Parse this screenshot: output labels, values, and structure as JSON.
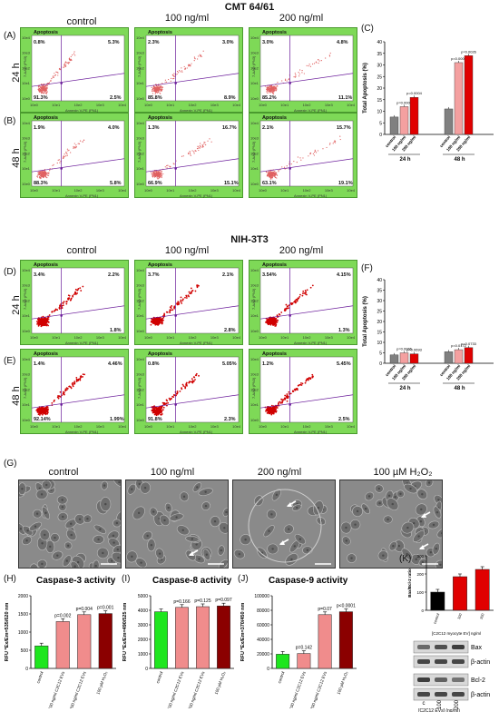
{
  "sectionA": {
    "header": "CMT 64/61",
    "columns": [
      "control",
      "100 ng/ml",
      "200 ng/ml"
    ],
    "rows": [
      "24 h",
      "48 h"
    ],
    "panel_labels": [
      "(A)",
      "(B)"
    ]
  },
  "sectionD": {
    "header": "NIH-3T3",
    "columns": [
      "control",
      "100 ng/ml",
      "200 ng/ml"
    ],
    "rows": [
      "24 h",
      "48 h"
    ],
    "panel_labels": [
      "(D)",
      "(E)"
    ]
  },
  "flow_common": {
    "gate": "Apoptosis",
    "ylabel": "7-AAD (PN3)",
    "xlabel": "Annexin V-PE (PN1)",
    "ticks": [
      "10e0",
      "10e1",
      "10e2",
      "10e3",
      "10e4"
    ]
  },
  "cmt_quadrants": [
    [
      {
        "ul": "0.8%",
        "ur": "5.3%",
        "ll": "91.3%",
        "lr": "2.5%"
      },
      {
        "ul": "2.3%",
        "ur": "3.0%",
        "ll": "85.8%",
        "lr": "8.9%"
      },
      {
        "ul": "3.0%",
        "ur": "4.8%",
        "ll": "85.2%",
        "lr": "11.1%"
      }
    ],
    [
      {
        "ul": "1.9%",
        "ur": "4.0%",
        "ll": "88.3%",
        "lr": "5.8%"
      },
      {
        "ul": "1.3%",
        "ur": "16.7%",
        "ll": "66.9%",
        "lr": "15.1%"
      },
      {
        "ul": "2.1%",
        "ur": "15.7%",
        "ll": "63.1%",
        "lr": "19.1%"
      }
    ]
  ],
  "nih_quadrants": [
    [
      {
        "ul": "3.4%",
        "ur": "2.2%",
        "ll": "",
        "lr": "1.8%"
      },
      {
        "ul": "3.7%",
        "ur": "2.1%",
        "ll": "",
        "lr": "2.8%"
      },
      {
        "ul": "3.54%",
        "ur": "4.15%",
        "ll": "",
        "lr": "1.3%"
      }
    ],
    [
      {
        "ul": "1.4%",
        "ur": "4.46%",
        "ll": "92.14%",
        "lr": "1.99%"
      },
      {
        "ul": "0.8%",
        "ur": "5.05%",
        "ll": "91.8%",
        "lr": "2.3%"
      },
      {
        "ul": "1.2%",
        "ur": "5.45%",
        "ll": "",
        "lr": "2.5%"
      }
    ]
  ],
  "colors": {
    "control": "#808080",
    "c100": "#f4a0a0",
    "c200": "#e00000",
    "green": "#1ee61e",
    "pink": "#f08c8c",
    "darkred": "#8b0000",
    "flowbg": "#7ed957"
  },
  "panelC": {
    "label": "(C)",
    "ylabel": "Total Apoptosis (%)"
  },
  "panelF": {
    "label": "(F)",
    "ylabel": "Total Apoptosis (%)"
  },
  "panelG": {
    "label": "(G)",
    "captions": [
      "control",
      "100 ng/ml",
      "200 ng/ml",
      "100 µM H₂O₂"
    ]
  },
  "panelH": {
    "label": "(H)",
    "title": "Caspase-3 activity",
    "ylabel": "RFU *Ex/Em=535/620 nm"
  },
  "panelI": {
    "label": "(I)",
    "title": "Caspase-8 activity",
    "ylabel": "RFU *Ex/Em=490/525 nm"
  },
  "panelJ": {
    "label": "(J)",
    "title": "Caspase-9 activity",
    "ylabel": "RFU *Ex/Em=370/450 nm"
  },
  "panelK": {
    "label": "(K)",
    "ylabel": "Bax/Bcl-2 ratio",
    "xcaption": "[C2C12 myocyte EV] ng/ml",
    "blots": [
      "Bax",
      "β-actin",
      "Bcl-2",
      "β-actin"
    ],
    "lanes": [
      "c",
      "100",
      "200"
    ],
    "caption": "[C2C12 EVs] (ng/ml)"
  },
  "chart_data": [
    {
      "type": "bar",
      "name": "C",
      "categories": [
        "control",
        "100 ng/ml",
        "200 ng/ml"
      ],
      "groups": [
        "24 h",
        "48 h"
      ],
      "series": [
        {
          "group": "24 h",
          "values": [
            7.5,
            12,
            16
          ],
          "pvals": [
            "",
            "p=0.0005",
            "p=0.0004"
          ]
        },
        {
          "group": "48 h",
          "values": [
            11,
            31,
            34
          ],
          "pvals": [
            "",
            "p=0.0009",
            "p=0.0026"
          ]
        }
      ],
      "ylim": [
        0,
        40
      ],
      "yticks": [
        0,
        5,
        10,
        15,
        20,
        25,
        30,
        35,
        40
      ]
    },
    {
      "type": "bar",
      "name": "F",
      "categories": [
        "control",
        "100 ng/ml",
        "200 ng/ml"
      ],
      "groups": [
        "24 h",
        "48 h"
      ],
      "series": [
        {
          "group": "24 h",
          "values": [
            4,
            5,
            4.5
          ],
          "pvals": [
            "",
            "p=0.0065",
            "p=0.0693"
          ]
        },
        {
          "group": "48 h",
          "values": [
            5.5,
            6.5,
            7.5
          ],
          "pvals": [
            "",
            "p=0.0172",
            "p=0.0733"
          ]
        }
      ],
      "ylim": [
        0,
        40
      ],
      "yticks": [
        0,
        5,
        10,
        15,
        20,
        25,
        30,
        35,
        40
      ]
    },
    {
      "type": "bar",
      "name": "H",
      "categories": [
        "control",
        "100 ng/ml C2C12 EVs",
        "200 ng/ml C2C12 EVs",
        "100 µM H₂O₂"
      ],
      "values": [
        620,
        1290,
        1480,
        1510
      ],
      "pvals": [
        "",
        "p=0.002",
        "p=0.004",
        "p=0.001"
      ],
      "ylim": [
        0,
        2000
      ],
      "yticks": [
        0,
        500,
        1000,
        1500,
        2000
      ]
    },
    {
      "type": "bar",
      "name": "I",
      "categories": [
        "control",
        "100 ng/ml C2C12 EVs",
        "200 ng/ml C2C12 EVs",
        "100 µM H₂O₂"
      ],
      "values": [
        3900,
        4200,
        4250,
        4300
      ],
      "pvals": [
        "",
        "p=0.166",
        "p=0.125",
        "p=0.097"
      ],
      "ylim": [
        0,
        5000
      ],
      "yticks": [
        0,
        1000,
        2000,
        3000,
        4000,
        5000
      ]
    },
    {
      "type": "bar",
      "name": "J",
      "categories": [
        "control",
        "100 ng/ml C2C12 EVs",
        "200 ng/ml C2C12 EVs",
        "100 µM H₂O₂"
      ],
      "values": [
        19500,
        20500,
        74000,
        78000
      ],
      "pvals": [
        "",
        "p=0.142",
        "p=0.07",
        "p<0.0001"
      ],
      "ylim": [
        0,
        100000
      ],
      "yticks": [
        0,
        20000,
        40000,
        60000,
        80000,
        100000
      ]
    },
    {
      "type": "bar",
      "name": "K",
      "categories": [
        "control",
        "100",
        "200"
      ],
      "values": [
        100,
        185,
        225
      ],
      "ylim": [
        0,
        300
      ],
      "yticks": [
        0,
        100,
        200,
        300
      ]
    }
  ]
}
